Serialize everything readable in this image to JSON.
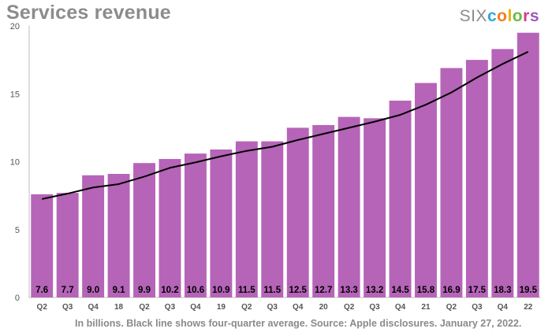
{
  "header": {
    "title": "Services revenue",
    "logo_prefix": "SIX",
    "logo_letters": [
      "c",
      "o",
      "l",
      "o",
      "r",
      "s"
    ]
  },
  "colors": {
    "bar": "#b564b7",
    "line": "#000000",
    "logo_letters": [
      "#2ca6e0",
      "#f47c20",
      "#e8b500",
      "#6bb945",
      "#d23c8a",
      "#9b59b6"
    ]
  },
  "caption": "In billions. Black line shows four-quarter average. Source: Apple disclosures. January 27, 2022.",
  "chart_data": {
    "type": "bar",
    "title": "Services revenue",
    "categories": [
      "Q2",
      "Q3",
      "Q4",
      "18",
      "Q2",
      "Q3",
      "Q4",
      "19",
      "Q2",
      "Q3",
      "Q4",
      "20",
      "Q2",
      "Q3",
      "Q4",
      "21",
      "Q2",
      "Q3",
      "Q4",
      "22"
    ],
    "series": [
      {
        "type": "bar",
        "values": [
          7.6,
          7.7,
          9.0,
          9.1,
          9.9,
          10.2,
          10.6,
          10.9,
          11.5,
          11.5,
          12.5,
          12.7,
          13.3,
          13.2,
          14.5,
          15.8,
          16.9,
          17.5,
          18.3,
          19.5
        ],
        "labels": [
          "7.6",
          "7.7",
          "9.0",
          "9.1",
          "9.9",
          "10.2",
          "10.6",
          "10.9",
          "11.5",
          "11.5",
          "12.5",
          "12.7",
          "13.3",
          "13.2",
          "14.5",
          "15.8",
          "16.9",
          "17.5",
          "18.3",
          "19.5"
        ]
      },
      {
        "type": "line",
        "values": [
          7.25,
          7.65,
          8.1,
          8.35,
          8.9,
          9.55,
          9.95,
          10.4,
          10.8,
          11.1,
          11.6,
          12.05,
          12.5,
          12.95,
          13.45,
          14.2,
          15.1,
          16.2,
          17.2,
          18.1
        ]
      }
    ],
    "ylim": [
      0,
      20
    ],
    "yticks": [
      0,
      5,
      10,
      15,
      20
    ],
    "grid": false,
    "legend": "none"
  }
}
